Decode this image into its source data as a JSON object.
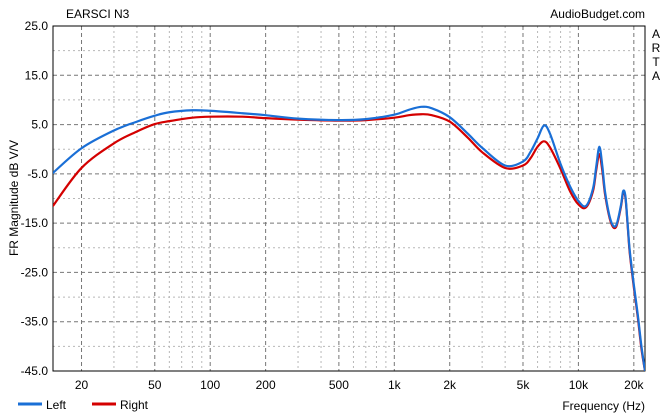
{
  "chart_data": {
    "type": "line",
    "title": "EARSCI N3",
    "source": "AudioBudget.com",
    "side_label": "ARTA",
    "xlabel": "Frequency (Hz)",
    "ylabel": "FR Magnitude dB V/V",
    "x_scale": "log",
    "xlim": [
      14,
      23000
    ],
    "ylim": [
      -45,
      25
    ],
    "y_ticks": [
      25.0,
      15.0,
      5.0,
      -5.0,
      -15.0,
      -25.0,
      -35.0,
      -45.0
    ],
    "y_tick_labels": [
      "25.0",
      "15.0",
      "5.0",
      "-5.0",
      "-15.0",
      "-25.0",
      "-35.0",
      "-45.0"
    ],
    "x_ticks": [
      20,
      50,
      100,
      200,
      500,
      1000,
      2000,
      5000,
      10000,
      20000
    ],
    "x_tick_labels": [
      "20",
      "50",
      "100",
      "200",
      "500",
      "1k",
      "2k",
      "5k",
      "10k",
      "20k"
    ],
    "grid": true,
    "legend_position": "bottom-left",
    "series": [
      {
        "name": "Left",
        "color": "#1a6fd6",
        "x": [
          14,
          20,
          30,
          40,
          50,
          60,
          80,
          100,
          150,
          200,
          300,
          500,
          700,
          1000,
          1200,
          1400,
          1600,
          2000,
          2500,
          3000,
          4000,
          5000,
          5500,
          6000,
          6500,
          7000,
          8000,
          9000,
          10000,
          11000,
          12000,
          12500,
          13000,
          13500,
          14000,
          15000,
          16000,
          17000,
          17500,
          18000,
          18500,
          19000,
          20000,
          21000,
          22000,
          23000
        ],
        "y": [
          -4.8,
          0.2,
          3.8,
          5.6,
          6.8,
          7.5,
          7.9,
          7.8,
          7.3,
          6.9,
          6.2,
          5.9,
          6.1,
          7.0,
          8.0,
          8.6,
          8.3,
          6.5,
          3.2,
          0.3,
          -3.3,
          -2.5,
          -0.5,
          2.2,
          4.8,
          3.2,
          -3.0,
          -7.5,
          -10.5,
          -11.5,
          -8.0,
          -3.5,
          0.5,
          -3.5,
          -9.0,
          -14.5,
          -15.5,
          -11.5,
          -8.5,
          -9.5,
          -15.0,
          -20.5,
          -27.5,
          -33.5,
          -40.0,
          -45.0
        ]
      },
      {
        "name": "Right",
        "color": "#d40000",
        "x": [
          14,
          20,
          30,
          40,
          50,
          60,
          80,
          100,
          150,
          200,
          300,
          500,
          700,
          1000,
          1200,
          1400,
          1600,
          2000,
          2500,
          3000,
          4000,
          5000,
          5500,
          6000,
          6500,
          7000,
          8000,
          9000,
          10000,
          11000,
          12000,
          12500,
          13000,
          13500,
          14000,
          15000,
          16000,
          17000,
          17500,
          18000,
          18500,
          19000,
          20000,
          21000,
          22000,
          23000
        ],
        "y": [
          -11.5,
          -3.8,
          1.2,
          3.6,
          5.1,
          5.7,
          6.4,
          6.6,
          6.6,
          6.3,
          6.0,
          5.8,
          5.9,
          6.4,
          6.9,
          7.1,
          6.9,
          5.6,
          2.4,
          -0.6,
          -3.8,
          -3.3,
          -1.8,
          0.5,
          1.6,
          0.4,
          -4.0,
          -8.5,
          -11.2,
          -11.8,
          -8.5,
          -4.2,
          -1.0,
          -4.5,
          -9.5,
          -14.8,
          -15.8,
          -11.8,
          -8.8,
          -9.8,
          -15.3,
          -21.0,
          -28.0,
          -34.0,
          -40.5,
          -45.0
        ]
      }
    ]
  }
}
